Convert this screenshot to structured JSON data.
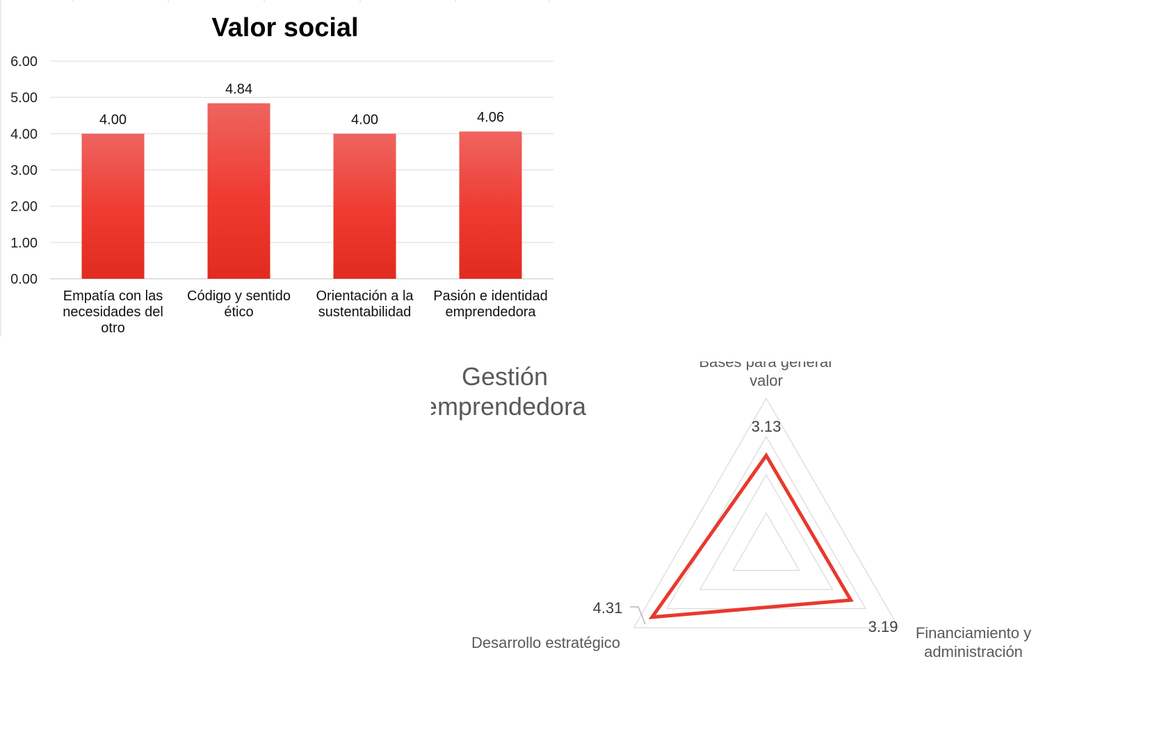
{
  "chart_data": [
    {
      "type": "bar",
      "title": "Valor social",
      "categories": [
        [
          "Empatía con las",
          "necesidades del",
          "otro"
        ],
        [
          "Código y sentido",
          "ético"
        ],
        [
          "Orientación a la",
          "sustentabilidad"
        ],
        [
          "Pasión e identidad",
          "emprendedora"
        ]
      ],
      "values": [
        4.0,
        4.84,
        4.0,
        4.06
      ],
      "value_labels": [
        "4.00",
        "4.84",
        "4.00",
        "4.06"
      ],
      "yticks": [
        "0.00",
        "1.00",
        "2.00",
        "3.00",
        "4.00",
        "5.00",
        "6.00"
      ],
      "ylim": [
        0,
        6
      ],
      "grid": true,
      "bar_color_top": "#ef6460",
      "bar_color_bottom": "#e12b20"
    },
    {
      "type": "radar",
      "title": [
        "Gestión",
        "emprendedora"
      ],
      "axes": [
        [
          "Bases para generar",
          "valor"
        ],
        [
          "Financiamiento y",
          "administración"
        ],
        [
          "Desarrollo estratégico"
        ]
      ],
      "values": [
        3.13,
        3.19,
        4.31
      ],
      "value_labels": [
        "3.13",
        "3.19",
        "4.31"
      ],
      "rlim": [
        0,
        5
      ],
      "line_color": "#e8392e",
      "grid": true
    }
  ]
}
